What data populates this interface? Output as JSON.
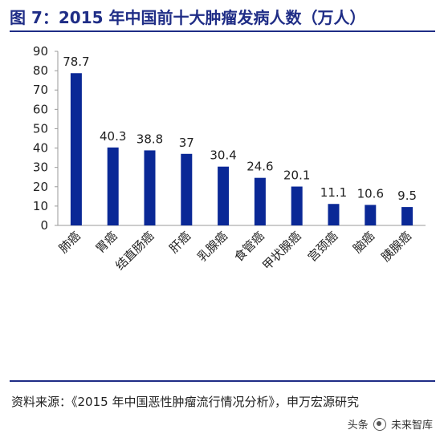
{
  "title": "图 7：2015 年中国前十大肿瘤发病人数（万人）",
  "source": "资料来源：《2015 年中国恶性肿瘤流行情况分析》，申万宏源研究",
  "watermark": {
    "prefix": "头条",
    "suffix": "未来智库"
  },
  "chart_data": {
    "type": "bar",
    "categories": [
      "肺癌",
      "胃癌",
      "结直肠癌",
      "肝癌",
      "乳腺癌",
      "食管癌",
      "甲状腺癌",
      "宫颈癌",
      "脑癌",
      "胰腺癌"
    ],
    "values": [
      78.7,
      40.3,
      38.8,
      37,
      30.4,
      24.6,
      20.1,
      11.1,
      10.6,
      9.5
    ],
    "value_labels": [
      "78.7",
      "40.3",
      "38.8",
      "37",
      "30.4",
      "24.6",
      "20.1",
      "11.1",
      "10.6",
      "9.5"
    ],
    "y_ticks": [
      0,
      10,
      20,
      30,
      40,
      50,
      60,
      70,
      80,
      90
    ],
    "ylim": [
      0,
      90
    ],
    "grid": false,
    "legend": "none",
    "bar_color": "#0a2896"
  }
}
